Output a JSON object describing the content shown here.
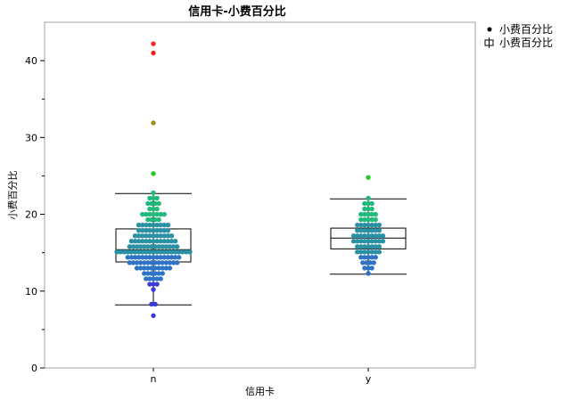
{
  "chart_data": {
    "type": "scatter",
    "subtype": "box-plot-with-jittered-points",
    "title": "信用卡-小费百分比",
    "xlabel": "信用卡",
    "ylabel": "小费百分比",
    "ylim": [
      0,
      45
    ],
    "yticks": [
      0,
      10,
      20,
      30,
      40
    ],
    "categories": [
      "n",
      "y"
    ],
    "grid": false,
    "legend_position": "top-right",
    "legend": [
      {
        "symbol": "dot",
        "label": "小费百分比"
      },
      {
        "symbol": "box",
        "label": "小费百分比"
      }
    ],
    "boxplots": [
      {
        "category": "n",
        "whisker_low": 8.2,
        "q1": 13.8,
        "median": 15.4,
        "q3": 18.1,
        "whisker_high": 22.7
      },
      {
        "category": "y",
        "whisker_low": 12.2,
        "q1": 15.5,
        "median": 16.9,
        "q3": 18.2,
        "whisker_high": 22.0
      }
    ],
    "point_rows": [
      {
        "category": "n",
        "y": 42.2,
        "count": 1
      },
      {
        "category": "n",
        "y": 41.0,
        "count": 1
      },
      {
        "category": "n",
        "y": 31.9,
        "count": 1
      },
      {
        "category": "n",
        "y": 25.3,
        "count": 1
      },
      {
        "category": "n",
        "y": 22.8,
        "count": 1
      },
      {
        "category": "n",
        "y": 22.1,
        "count": 3
      },
      {
        "category": "n",
        "y": 21.4,
        "count": 4
      },
      {
        "category": "n",
        "y": 20.7,
        "count": 3
      },
      {
        "category": "n",
        "y": 20.0,
        "count": 7
      },
      {
        "category": "n",
        "y": 19.3,
        "count": 4
      },
      {
        "category": "n",
        "y": 18.6,
        "count": 9
      },
      {
        "category": "n",
        "y": 17.9,
        "count": 9
      },
      {
        "category": "n",
        "y": 17.2,
        "count": 11
      },
      {
        "category": "n",
        "y": 16.5,
        "count": 13
      },
      {
        "category": "n",
        "y": 15.8,
        "count": 14
      },
      {
        "category": "n",
        "y": 15.1,
        "count": 21
      },
      {
        "category": "n",
        "y": 14.4,
        "count": 15
      },
      {
        "category": "n",
        "y": 13.7,
        "count": 14
      },
      {
        "category": "n",
        "y": 13.0,
        "count": 10
      },
      {
        "category": "n",
        "y": 12.3,
        "count": 6
      },
      {
        "category": "n",
        "y": 11.6,
        "count": 5
      },
      {
        "category": "n",
        "y": 10.9,
        "count": 3
      },
      {
        "category": "n",
        "y": 10.2,
        "count": 1
      },
      {
        "category": "n",
        "y": 8.3,
        "count": 2
      },
      {
        "category": "n",
        "y": 6.8,
        "count": 1
      },
      {
        "category": "y",
        "y": 24.8,
        "count": 1
      },
      {
        "category": "y",
        "y": 22.1,
        "count": 1
      },
      {
        "category": "y",
        "y": 21.4,
        "count": 3
      },
      {
        "category": "y",
        "y": 20.7,
        "count": 3
      },
      {
        "category": "y",
        "y": 20.0,
        "count": 5
      },
      {
        "category": "y",
        "y": 19.3,
        "count": 5
      },
      {
        "category": "y",
        "y": 18.6,
        "count": 7
      },
      {
        "category": "y",
        "y": 17.9,
        "count": 7
      },
      {
        "category": "y",
        "y": 17.2,
        "count": 9
      },
      {
        "category": "y",
        "y": 16.5,
        "count": 9
      },
      {
        "category": "y",
        "y": 15.8,
        "count": 7
      },
      {
        "category": "y",
        "y": 15.1,
        "count": 7
      },
      {
        "category": "y",
        "y": 14.4,
        "count": 5
      },
      {
        "category": "y",
        "y": 13.7,
        "count": 4
      },
      {
        "category": "y",
        "y": 13.0,
        "count": 3
      },
      {
        "category": "y",
        "y": 12.3,
        "count": 1
      }
    ],
    "point_colors": {
      "low": "#3a3ad8",
      "mid_low": "#2f73c6",
      "mid": "#2a90a4",
      "mid_high": "#1fb97a",
      "green": "#22cc22",
      "olive": "#a08a18",
      "red": "#ff2020"
    }
  }
}
